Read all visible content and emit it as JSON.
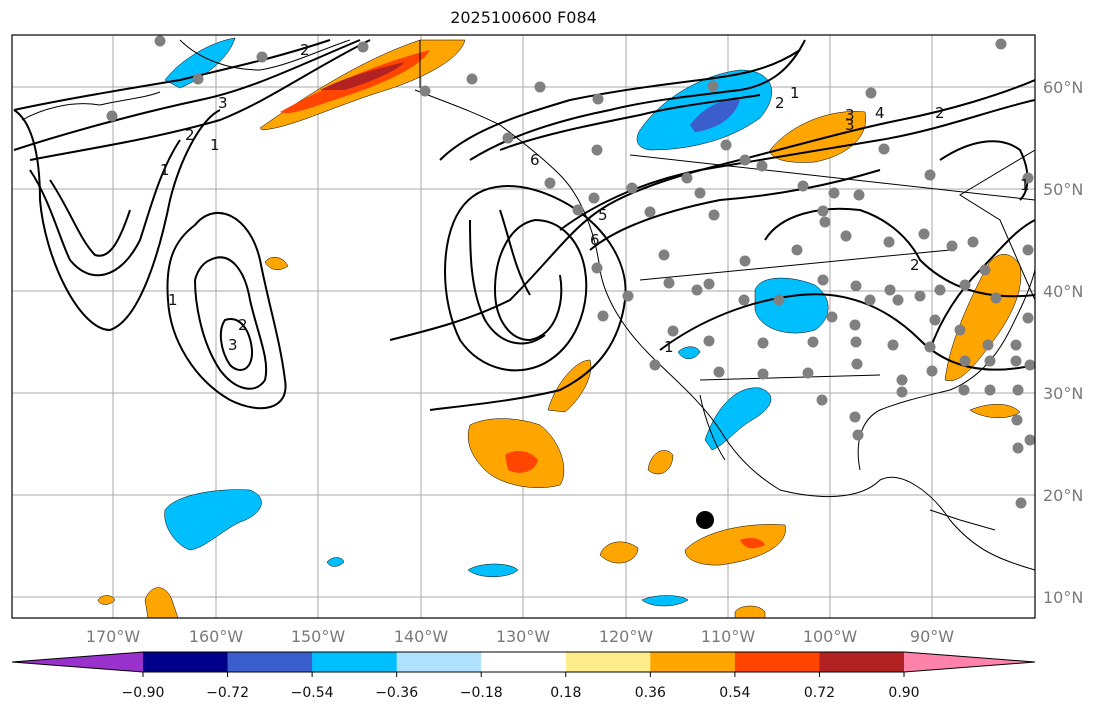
{
  "title": "2025100600 F084",
  "map": {
    "lat_labels": [
      "60°N",
      "50°N",
      "40°N",
      "30°N",
      "20°N",
      "10°N"
    ],
    "lon_labels": [
      "170°W",
      "160°W",
      "150°W",
      "140°W",
      "130°W",
      "120°W",
      "110°W",
      "100°W",
      "90°W"
    ],
    "grid": true,
    "contour_labels": [
      "1",
      "2",
      "1",
      "2",
      "3",
      "1",
      "2",
      "3",
      "6",
      "6",
      "5",
      "1",
      "1",
      "2",
      "3",
      "4",
      "2",
      "3",
      "1",
      "2"
    ]
  },
  "colorbar": {
    "ticks": [
      "−0.90",
      "−0.72",
      "−0.54",
      "−0.36",
      "−0.18",
      "0.18",
      "0.36",
      "0.54",
      "0.72",
      "0.90"
    ],
    "colors": [
      "#9932cc",
      "#00008b",
      "#3a5fcd",
      "#00bfff",
      "#b0e2ff",
      "#ffffff",
      "#ffec8b",
      "#ffa500",
      "#ff4500",
      "#b22222",
      "#ff82ab"
    ],
    "extend": "both"
  }
}
